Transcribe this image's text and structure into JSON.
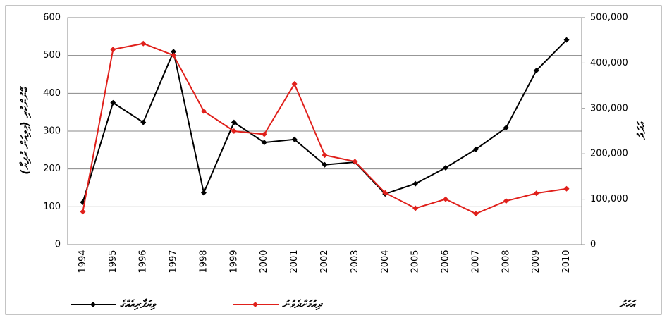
{
  "chart_data": {
    "type": "line",
    "y_label": "(މިލިއަން ރުފިޔާ) ބޭނުންކުރި",
    "y2_label": "އަދަދު",
    "x_label": "އަހަރު",
    "categories": [
      "1994",
      "1995",
      "1996",
      "1997",
      "1998",
      "1999",
      "2000",
      "2001",
      "2002",
      "2003",
      "2004",
      "2005",
      "2006",
      "2007",
      "2008",
      "2009",
      "2010"
    ],
    "series": [
      {
        "name": "ވިޔަފާރިއެއްގެ",
        "color": "#000000",
        "values": [
          112,
          375,
          323,
          510,
          137,
          323,
          270,
          278,
          211,
          218,
          134,
          161,
          203,
          252,
          309,
          460,
          541
        ]
      },
      {
        "name": "ދިއުމަށްދެވުނު",
        "color": "#e0201b",
        "axis": "y2",
        "values": [
          72500,
          430000,
          443000,
          417000,
          294000,
          250000,
          243000,
          354000,
          197000,
          183000,
          114000,
          80000,
          100000,
          68000,
          96000,
          113000,
          123000
        ]
      }
    ],
    "ylim": [
      0,
      600
    ],
    "yticks": [
      0,
      100,
      200,
      300,
      400,
      500,
      600
    ],
    "y2lim": [
      0,
      500000
    ],
    "y2ticks": [
      0,
      {
        "value": 100000,
        "label": "100,000"
      },
      {
        "value": 200000,
        "label": "200,000"
      },
      {
        "value": 300000,
        "label": "300,000"
      },
      {
        "value": 400000,
        "label": "400,000"
      },
      {
        "value": 500000,
        "label": "500,000"
      }
    ],
    "grid": true
  }
}
